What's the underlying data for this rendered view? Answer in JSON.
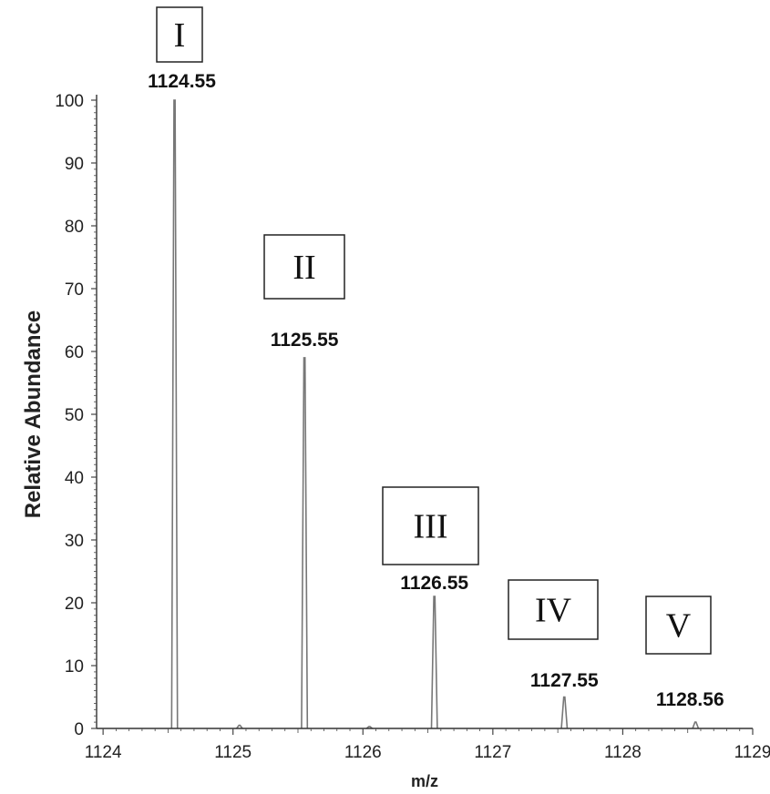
{
  "chart_data": {
    "type": "line",
    "subtype": "mass-spectrum-stick",
    "title": "",
    "xlabel": "m/z",
    "ylabel": "Relative Abundance",
    "xlim": [
      1123.95,
      1129.0
    ],
    "ylim": [
      0,
      100
    ],
    "x_ticks": [
      1124,
      1125,
      1126,
      1127,
      1128,
      1129
    ],
    "x_tick_labels": [
      "1124",
      "1125",
      "1126",
      "1127",
      "1128",
      "1129"
    ],
    "y_ticks": [
      0,
      10,
      20,
      30,
      40,
      50,
      60,
      70,
      80,
      90,
      100
    ],
    "y_tick_labels": [
      "0",
      "10",
      "20",
      "30",
      "40",
      "50",
      "60",
      "70",
      "80",
      "90",
      "100"
    ],
    "grid": false,
    "line_color": "#777777",
    "peaks": [
      {
        "mz": 1124.55,
        "abundance": 100,
        "label": "1124.55",
        "annotation": "I"
      },
      {
        "mz": 1125.55,
        "abundance": 59,
        "label": "1125.55",
        "annotation": "II"
      },
      {
        "mz": 1126.55,
        "abundance": 21,
        "label": "1126.55",
        "annotation": "III"
      },
      {
        "mz": 1127.55,
        "abundance": 5,
        "label": "1127.55",
        "annotation": "IV"
      },
      {
        "mz": 1128.56,
        "abundance": 1,
        "label": "1128.56",
        "annotation": "V"
      }
    ],
    "minor_peaks": [
      {
        "mz": 1125.05,
        "abundance": 0.5
      },
      {
        "mz": 1126.05,
        "abundance": 0.3
      }
    ]
  }
}
